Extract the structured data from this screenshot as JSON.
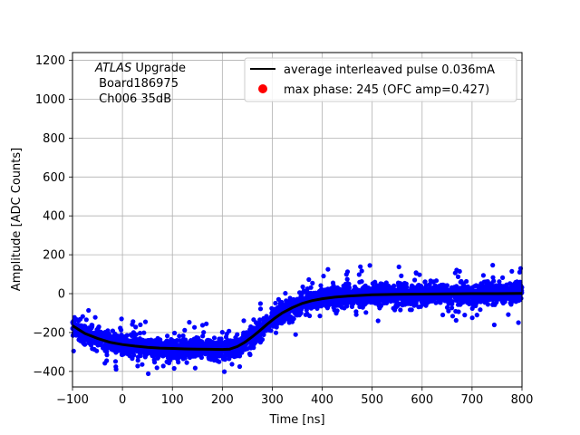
{
  "chart_data": {
    "type": "scatter",
    "xlabel": "Time [ns]",
    "ylabel": "Amplitude [ADC Counts]",
    "xlim": [
      -100,
      800
    ],
    "ylim": [
      -480,
      1240
    ],
    "xticks": [
      -100,
      0,
      100,
      200,
      300,
      400,
      500,
      600,
      700,
      800
    ],
    "yticks": [
      -400,
      -200,
      0,
      200,
      400,
      600,
      800,
      1000,
      1200
    ],
    "grid": true,
    "legend_position": "top-right",
    "annotation": {
      "line1_italic": "ATLAS",
      "line1_rest": " Upgrade",
      "line2": " Board186975",
      "line3": " Ch006 35dB"
    },
    "series": [
      {
        "name": "average interleaved pulse 0.036mA",
        "kind": "line",
        "color": "#000000",
        "x": [
          -100,
          -75,
          -50,
          -25,
          0,
          25,
          50,
          75,
          100,
          125,
          150,
          175,
          200,
          215,
          230,
          245,
          260,
          275,
          290,
          305,
          320,
          340,
          360,
          380,
          400,
          425,
          450,
          475,
          500,
          550,
          600,
          650,
          700,
          750,
          800
        ],
        "y": [
          -165,
          -205,
          -230,
          -250,
          -262,
          -270,
          -276,
          -280,
          -282,
          -284,
          -285,
          -286,
          -287,
          -285,
          -272,
          -250,
          -222,
          -190,
          -157,
          -126,
          -99,
          -72,
          -50,
          -36,
          -26,
          -18,
          -13,
          -9,
          -6,
          -3,
          -2,
          -1,
          0,
          0,
          1
        ]
      },
      {
        "name": "",
        "kind": "scatter",
        "color": "#0000ff",
        "description_band_halfwidth": 45
      },
      {
        "name": "max phase: 245 (OFC amp=0.427)",
        "kind": "marker",
        "color": "#ff0000",
        "x": [],
        "y": []
      }
    ]
  }
}
